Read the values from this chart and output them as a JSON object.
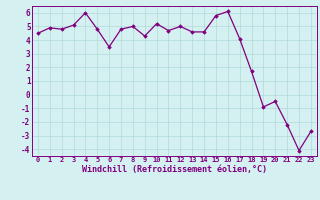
{
  "x": [
    0,
    1,
    2,
    3,
    4,
    5,
    6,
    7,
    8,
    9,
    10,
    11,
    12,
    13,
    14,
    15,
    16,
    17,
    18,
    19,
    20,
    21,
    22,
    23
  ],
  "y": [
    4.5,
    4.9,
    4.8,
    5.1,
    6.0,
    4.8,
    3.5,
    4.8,
    5.0,
    4.3,
    5.2,
    4.7,
    5.0,
    4.6,
    4.6,
    5.8,
    6.1,
    4.1,
    1.7,
    -0.9,
    -0.5,
    -2.2,
    -4.1,
    -2.7
  ],
  "line_color": "#800080",
  "marker": "D",
  "markersize": 1.8,
  "linewidth": 0.9,
  "xlabel": "Windchill (Refroidissement éolien,°C)",
  "xlabel_fontsize": 6.0,
  "xlabel_color": "#800080",
  "ylabel_ticks": [
    -4,
    -3,
    -2,
    -1,
    0,
    1,
    2,
    3,
    4,
    5,
    6
  ],
  "xtick_labels": [
    "0",
    "1",
    "2",
    "3",
    "4",
    "5",
    "6",
    "7",
    "8",
    "9",
    "10",
    "11",
    "12",
    "13",
    "14",
    "15",
    "16",
    "17",
    "18",
    "19",
    "20",
    "21",
    "22",
    "23"
  ],
  "xtick_fontsize": 5.0,
  "ytick_fontsize": 5.5,
  "tick_color": "#800080",
  "background_color": "#d4f0f0",
  "grid_color": "#b0dada",
  "ylim": [
    -4.5,
    6.5
  ],
  "xlim": [
    -0.5,
    23.5
  ],
  "spine_color": "#800080"
}
